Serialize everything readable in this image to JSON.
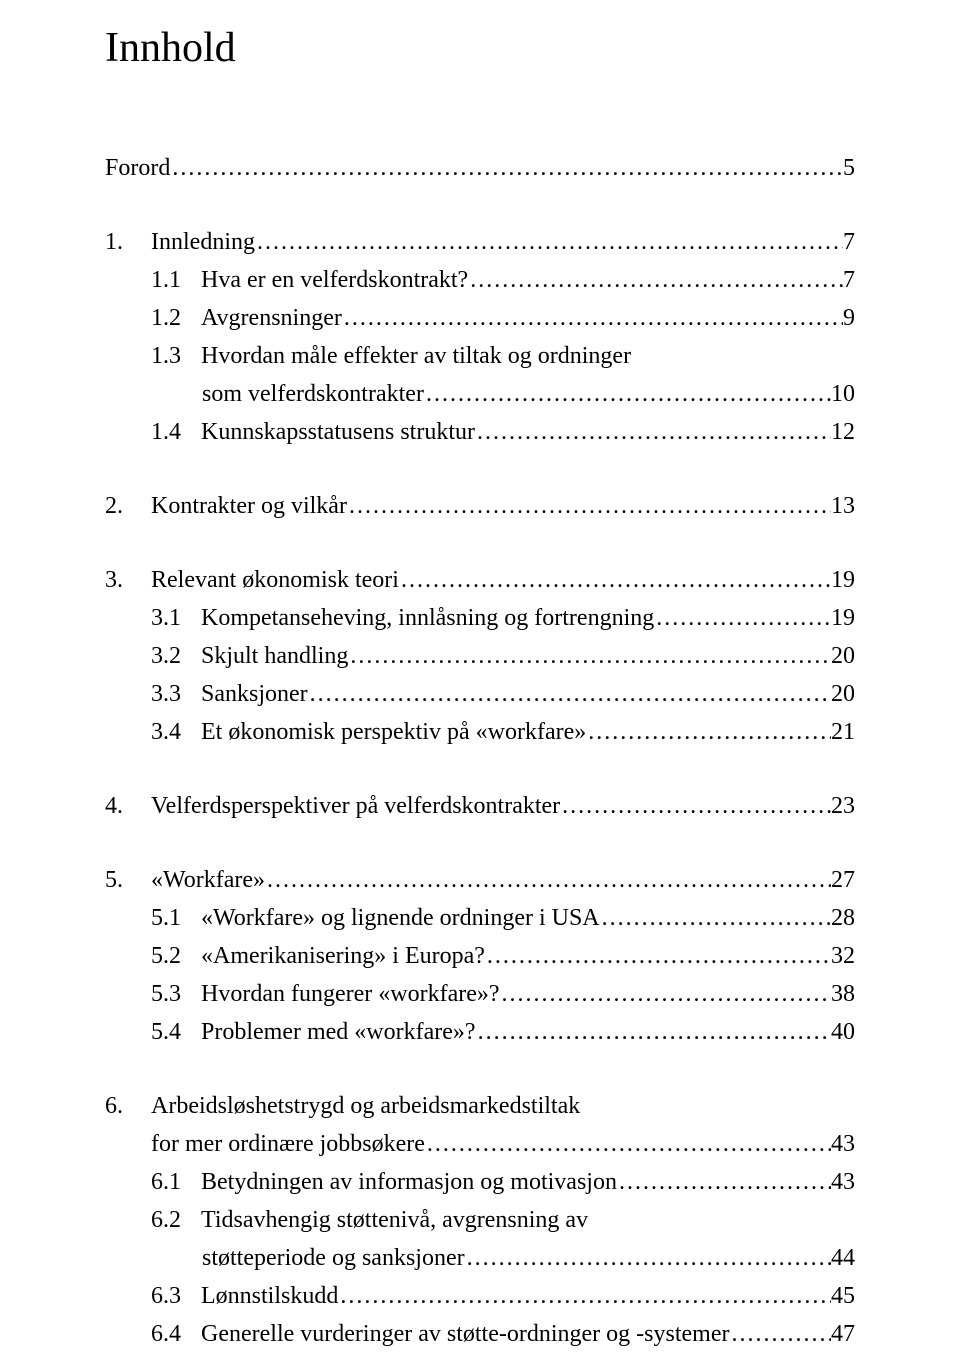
{
  "title": "Innhold",
  "entries": [
    {
      "label": "Forord",
      "page": "5",
      "level": 0,
      "continuation": false
    },
    {
      "gap": true
    },
    {
      "num": "1.",
      "label": "Innledning",
      "page": "7",
      "level": 0,
      "continuation": false
    },
    {
      "num": "1.1",
      "label": "Hva er en velferdskontrakt?",
      "page": "7",
      "level": 1,
      "continuation": false
    },
    {
      "num": "1.2",
      "label": "Avgrensninger",
      "page": "9",
      "level": 1,
      "continuation": false
    },
    {
      "num": "1.3",
      "label": "Hvordan måle effekter av tiltak og ordninger",
      "level": 1,
      "continuation": true
    },
    {
      "label": "som velferdskontrakter",
      "page": "10",
      "level": 2,
      "continuation": false
    },
    {
      "num": "1.4",
      "label": "Kunnskapsstatusens struktur",
      "page": "12",
      "level": 1,
      "continuation": false
    },
    {
      "gap": true
    },
    {
      "num": "2.",
      "label": "Kontrakter og vilkår",
      "page": "13",
      "level": 0,
      "continuation": false
    },
    {
      "gap": true
    },
    {
      "num": "3.",
      "label": "Relevant økonomisk teori",
      "page": "19",
      "level": 0,
      "continuation": false
    },
    {
      "num": "3.1",
      "label": "Kompetanseheving, innlåsning og fortrengning",
      "page": "19",
      "level": 1,
      "continuation": false
    },
    {
      "num": "3.2",
      "label": "Skjult handling",
      "page": "20",
      "level": 1,
      "continuation": false
    },
    {
      "num": "3.3",
      "label": "Sanksjoner",
      "page": "20",
      "level": 1,
      "continuation": false
    },
    {
      "num": "3.4",
      "label": "Et økonomisk perspektiv på «workfare»",
      "page": "21",
      "level": 1,
      "continuation": false
    },
    {
      "gap": true
    },
    {
      "num": "4.",
      "label": "Velferdsperspektiver på velferdskontrakter",
      "page": "23",
      "level": 0,
      "continuation": false
    },
    {
      "gap": true
    },
    {
      "num": "5.",
      "label": "«Workfare»",
      "page": "27",
      "level": 0,
      "continuation": false
    },
    {
      "num": "5.1",
      "label": "«Workfare» og lignende ordninger i USA",
      "page": "28",
      "level": 1,
      "continuation": false
    },
    {
      "num": "5.2",
      "label": "«Amerikanisering» i Europa?",
      "page": "32",
      "level": 1,
      "continuation": false
    },
    {
      "num": "5.3",
      "label": "Hvordan fungerer «workfare»?",
      "page": "38",
      "level": 1,
      "continuation": false
    },
    {
      "num": "5.4",
      "label": "Problemer med «workfare»?",
      "page": "40",
      "level": 1,
      "continuation": false
    },
    {
      "gap": true
    },
    {
      "num": "6.",
      "label": "Arbeidsløshetstrygd og arbeidsmarkedstiltak",
      "level": 0,
      "continuation": true
    },
    {
      "label": "for mer ordinære jobbsøkere",
      "page": "43",
      "level": 0,
      "indent_cont": true,
      "continuation": false
    },
    {
      "num": "6.1",
      "label": "Betydningen av informasjon og motivasjon",
      "page": "43",
      "level": 1,
      "continuation": false
    },
    {
      "num": "6.2",
      "label": "Tidsavhengig støttenivå, avgrensning av",
      "level": 1,
      "continuation": true
    },
    {
      "label": "støtteperiode og sanksjoner",
      "page": "44",
      "level": 2,
      "continuation": false
    },
    {
      "num": "6.3",
      "label": "Lønnstilskudd",
      "page": "45",
      "level": 1,
      "continuation": false
    },
    {
      "num": "6.4",
      "label": "Generelle vurderinger av støtte-ordninger og -systemer",
      "page": "47",
      "level": 1,
      "continuation": false
    }
  ]
}
